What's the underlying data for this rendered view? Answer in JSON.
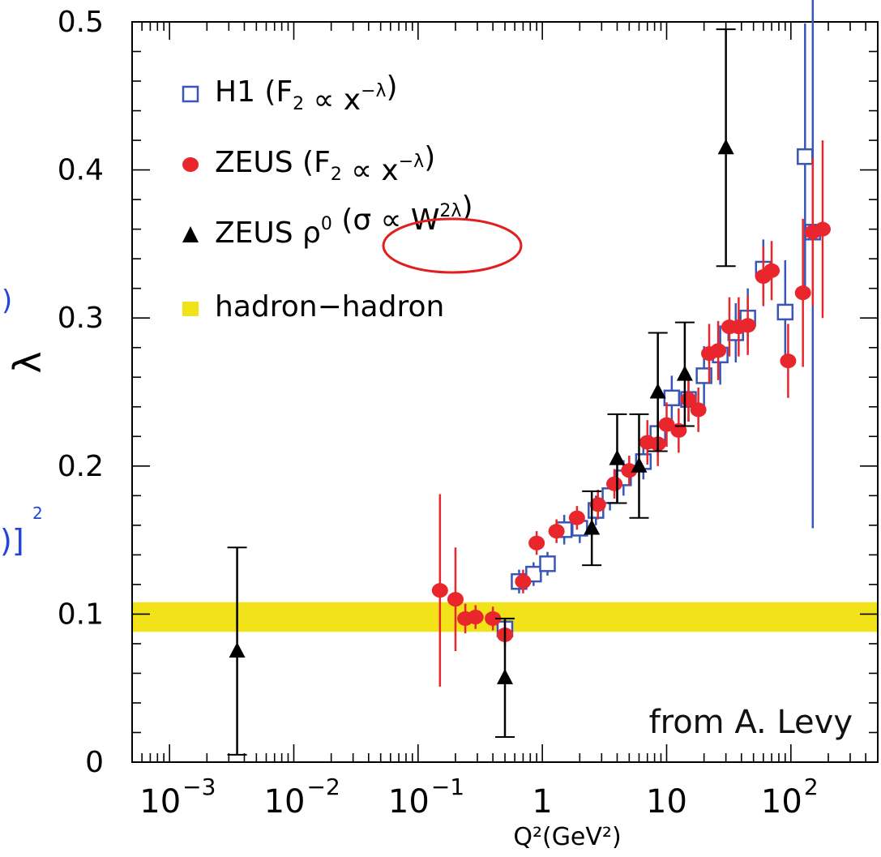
{
  "chart_data": {
    "type": "scatter",
    "xscale": "log",
    "xlim": [
      0.0005,
      500
    ],
    "ylim": [
      0,
      0.5
    ],
    "xlabel": "Q²(GeV²)",
    "ylabel": "λ",
    "xticks": [
      {
        "value": 0.001,
        "mant": "10",
        "exp": "−3"
      },
      {
        "value": 0.01,
        "mant": "10",
        "exp": "−2"
      },
      {
        "value": 0.1,
        "mant": "10",
        "exp": "−1"
      },
      {
        "value": 1,
        "mant": "1",
        "exp": ""
      },
      {
        "value": 10,
        "mant": "10",
        "exp": ""
      },
      {
        "value": 100,
        "mant": "10",
        "exp": "2"
      }
    ],
    "yticks": [
      {
        "value": 0,
        "label": "0"
      },
      {
        "value": 0.1,
        "label": "0.1"
      },
      {
        "value": 0.2,
        "label": "0.2"
      },
      {
        "value": 0.3,
        "label": "0.3"
      },
      {
        "value": 0.4,
        "label": "0.4"
      },
      {
        "value": 0.5,
        "label": "0.5"
      }
    ],
    "band": {
      "ymin": 0.088,
      "ymax": 0.108,
      "color": "#f2e21a"
    },
    "annotation": "from A. Levy",
    "legend": {
      "placement": "top-left",
      "entries": [
        {
          "key": "h1",
          "marker": "open-square",
          "color": "#3a55b8",
          "prefix": "H1 (F",
          "sub": "2",
          "mid": " ∝ x",
          "sup": "−λ",
          "suffix": ")"
        },
        {
          "key": "zeus",
          "marker": "circle",
          "color": "#e8262b",
          "prefix": "ZEUS (F",
          "sub": "2",
          "mid": " ∝ x",
          "sup": "−λ",
          "suffix": ")"
        },
        {
          "key": "rho",
          "marker": "triangle",
          "color": "#000000",
          "prefix": "ZEUS ρ",
          "sub": "",
          "mid": "",
          "sup": "0",
          "suffix": " (σ ∝ W",
          "sup2": "2λ",
          "suffix2": ")"
        },
        {
          "key": "band",
          "marker": "band",
          "color": "#f2e21a",
          "prefix": "hadron−hadron",
          "sub": "",
          "mid": "",
          "sup": "",
          "suffix": ""
        }
      ]
    },
    "series": [
      {
        "name": "H1 (F2 ∝ x^−λ)",
        "marker": "open-square",
        "color": "#3a55b8",
        "points": [
          {
            "x": 0.5,
            "y": 0.09,
            "err": 0.006
          },
          {
            "x": 0.65,
            "y": 0.122,
            "err": 0.008
          },
          {
            "x": 0.85,
            "y": 0.127,
            "err": 0.008
          },
          {
            "x": 1.1,
            "y": 0.134,
            "err": 0.008
          },
          {
            "x": 1.5,
            "y": 0.157,
            "err": 0.01
          },
          {
            "x": 2.0,
            "y": 0.158,
            "err": 0.01
          },
          {
            "x": 2.7,
            "y": 0.17,
            "err": 0.01
          },
          {
            "x": 3.5,
            "y": 0.18,
            "err": 0.01
          },
          {
            "x": 4.5,
            "y": 0.192,
            "err": 0.012
          },
          {
            "x": 6.5,
            "y": 0.203,
            "err": 0.012
          },
          {
            "x": 8.5,
            "y": 0.222,
            "err": 0.015
          },
          {
            "x": 11.0,
            "y": 0.246,
            "err": 0.015
          },
          {
            "x": 15.0,
            "y": 0.245,
            "err": 0.015
          },
          {
            "x": 20.0,
            "y": 0.261,
            "err": 0.02
          },
          {
            "x": 27.0,
            "y": 0.275,
            "err": 0.02
          },
          {
            "x": 36.0,
            "y": 0.29,
            "err": 0.02
          },
          {
            "x": 45.0,
            "y": 0.3,
            "err": 0.02
          },
          {
            "x": 60.0,
            "y": 0.333,
            "err": 0.02
          },
          {
            "x": 90.0,
            "y": 0.304,
            "err": 0.035
          },
          {
            "x": 130.0,
            "y": 0.409,
            "err": 0.09
          },
          {
            "x": 150.0,
            "y": 0.358,
            "err": 0.2
          }
        ]
      },
      {
        "name": "ZEUS (F2 ∝ x^−λ)",
        "marker": "circle",
        "color": "#e8262b",
        "points": [
          {
            "x": 0.15,
            "y": 0.116,
            "err": 0.065
          },
          {
            "x": 0.2,
            "y": 0.11,
            "err": 0.035
          },
          {
            "x": 0.24,
            "y": 0.097,
            "err": 0.01
          },
          {
            "x": 0.29,
            "y": 0.098,
            "err": 0.008
          },
          {
            "x": 0.4,
            "y": 0.097,
            "err": 0.008
          },
          {
            "x": 0.5,
            "y": 0.086,
            "err": 0.008
          },
          {
            "x": 0.7,
            "y": 0.122,
            "err": 0.008
          },
          {
            "x": 0.9,
            "y": 0.148,
            "err": 0.008
          },
          {
            "x": 1.3,
            "y": 0.156,
            "err": 0.008
          },
          {
            "x": 1.9,
            "y": 0.165,
            "err": 0.008
          },
          {
            "x": 2.8,
            "y": 0.174,
            "err": 0.01
          },
          {
            "x": 3.8,
            "y": 0.188,
            "err": 0.01
          },
          {
            "x": 5.0,
            "y": 0.197,
            "err": 0.01
          },
          {
            "x": 7.0,
            "y": 0.216,
            "err": 0.015
          },
          {
            "x": 8.5,
            "y": 0.215,
            "err": 0.015
          },
          {
            "x": 10.0,
            "y": 0.228,
            "err": 0.015
          },
          {
            "x": 12.5,
            "y": 0.224,
            "err": 0.015
          },
          {
            "x": 15.0,
            "y": 0.245,
            "err": 0.015
          },
          {
            "x": 18.0,
            "y": 0.238,
            "err": 0.015
          },
          {
            "x": 22.0,
            "y": 0.276,
            "err": 0.02
          },
          {
            "x": 26.0,
            "y": 0.278,
            "err": 0.02
          },
          {
            "x": 32.0,
            "y": 0.294,
            "err": 0.02
          },
          {
            "x": 38.0,
            "y": 0.294,
            "err": 0.02
          },
          {
            "x": 45.0,
            "y": 0.295,
            "err": 0.02
          },
          {
            "x": 60.0,
            "y": 0.328,
            "err": 0.02
          },
          {
            "x": 70.0,
            "y": 0.332,
            "err": 0.02
          },
          {
            "x": 95.0,
            "y": 0.271,
            "err": 0.025
          },
          {
            "x": 125.0,
            "y": 0.317,
            "err": 0.05
          },
          {
            "x": 150.0,
            "y": 0.358,
            "err": 0.05
          },
          {
            "x": 180.0,
            "y": 0.36,
            "err": 0.06
          }
        ]
      },
      {
        "name": "ZEUS ρ0 (σ ∝ W^2λ)",
        "marker": "triangle",
        "color": "#000000",
        "points": [
          {
            "x": 0.0035,
            "y": 0.075,
            "err": 0.07,
            "sys": 0.03
          },
          {
            "x": 0.5,
            "y": 0.057,
            "err": 0.04,
            "sys": 0.015
          },
          {
            "x": 2.5,
            "y": 0.158,
            "err": 0.025,
            "sys": 0.015
          },
          {
            "x": 4.0,
            "y": 0.205,
            "err": 0.03,
            "sys": 0.02
          },
          {
            "x": 6.0,
            "y": 0.2,
            "err": 0.035,
            "sys": 0.025
          },
          {
            "x": 8.5,
            "y": 0.25,
            "err": 0.04,
            "sys": 0.03
          },
          {
            "x": 14.0,
            "y": 0.262,
            "err": 0.035,
            "sys": 0.03
          },
          {
            "x": 30.0,
            "y": 0.415,
            "err": 0.08,
            "sys": 0.06
          }
        ]
      }
    ],
    "highlight_term": "σ ∝ W^2λ",
    "edge_fragments": [
      ")",
      ")]",
      "2"
    ]
  }
}
